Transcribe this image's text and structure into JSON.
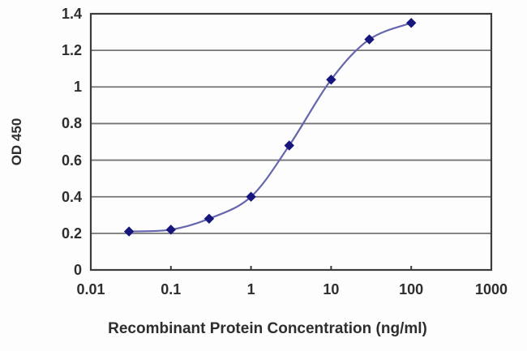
{
  "chart_data": {
    "type": "line",
    "title": "",
    "xlabel": "Recombinant Protein Concentration (ng/ml)",
    "ylabel": "OD 450",
    "x_scale": "log",
    "xlim": [
      0.01,
      1000
    ],
    "ylim": [
      0,
      1.4
    ],
    "x_ticks": [
      0.01,
      0.1,
      1,
      10,
      100,
      1000
    ],
    "x_tick_labels": [
      "0.01",
      "0.1",
      "1",
      "10",
      "100",
      "1000"
    ],
    "y_ticks": [
      0,
      0.2,
      0.4,
      0.6,
      0.8,
      1.0,
      1.2,
      1.4
    ],
    "y_tick_labels": [
      "0",
      "0.2",
      "0.4",
      "0.6",
      "0.8",
      "1",
      "1.2",
      "1.4"
    ],
    "grid": "horizontal",
    "legend": "none",
    "curve_style": "smoothed",
    "series": [
      {
        "name": "OD 450",
        "marker": "diamond",
        "x": [
          0.03,
          0.1,
          0.3,
          1,
          3,
          10,
          30,
          100
        ],
        "y": [
          0.21,
          0.22,
          0.28,
          0.4,
          0.68,
          1.04,
          1.26,
          1.35
        ]
      }
    ],
    "colors": {
      "line": "#6565ae",
      "marker": "#16167d",
      "grid": "#757575",
      "axis": "#3c3c3c",
      "label": "#2e2e2e",
      "background": "#fdfdfd"
    }
  }
}
